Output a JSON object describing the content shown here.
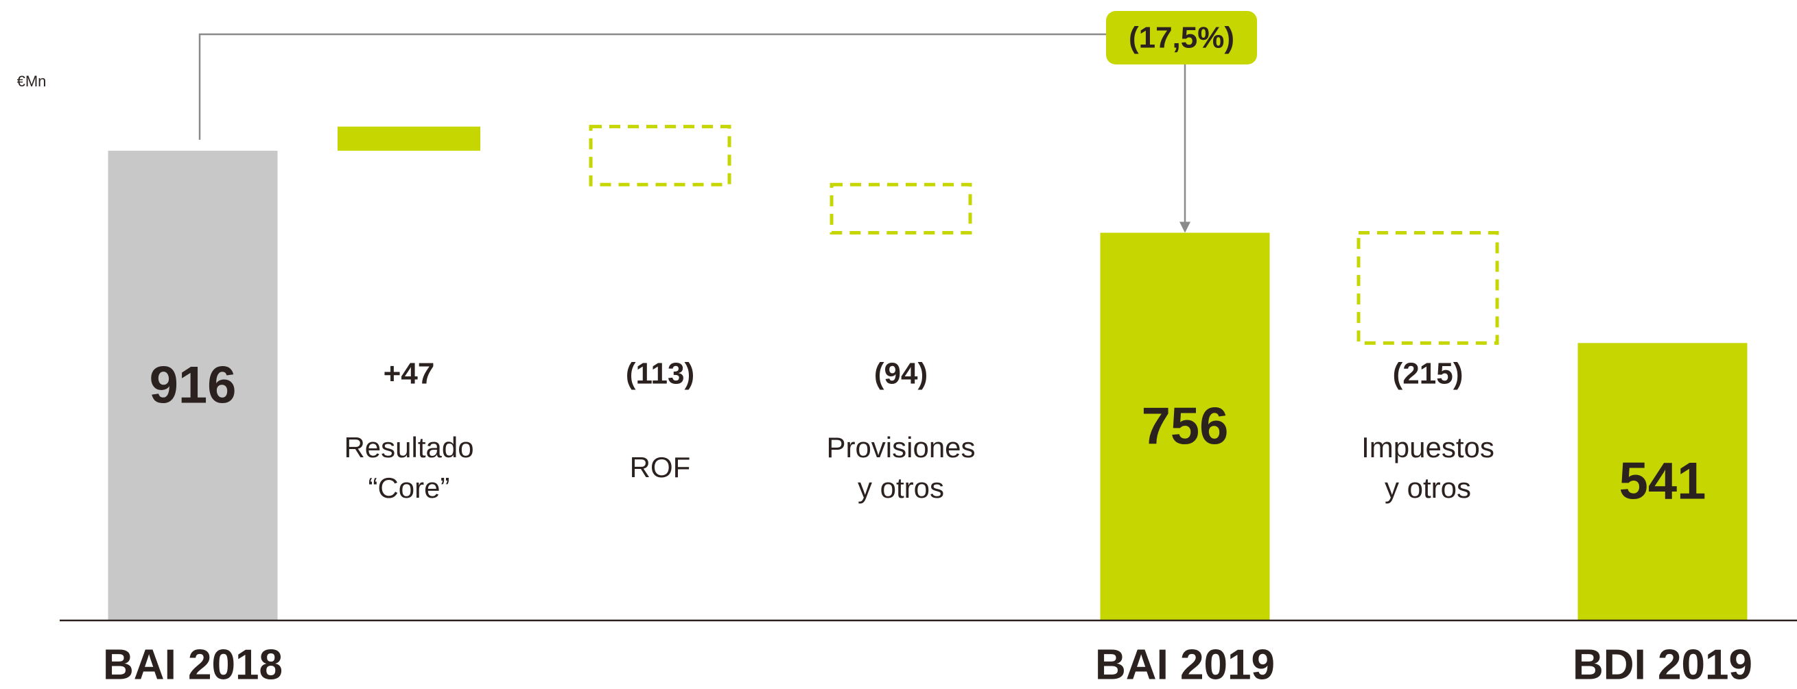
{
  "chart_data": {
    "type": "waterfall",
    "unit": "€Mn",
    "categories": [
      [
        "BAI 2018"
      ],
      [
        "Resultado",
        "“Core”"
      ],
      [
        "ROF"
      ],
      [
        "Provisiones",
        "y otros"
      ],
      [
        "BAI 2019"
      ],
      [
        "Impuestos",
        "y otros"
      ],
      [
        "BDI 2019"
      ]
    ],
    "measure": [
      "total",
      "relative",
      "relative",
      "relative",
      "total",
      "relative",
      "total"
    ],
    "values": [
      916,
      47,
      -113,
      -94,
      756,
      -215,
      541
    ],
    "value_labels": [
      "916",
      "+47",
      "(113)",
      "(94)",
      "756",
      "(215)",
      "541"
    ],
    "colors": {
      "first_total": "#c8c8c8",
      "total": "#c5d600",
      "increase": "#c5d600",
      "decrease": "#c5d600"
    },
    "annotation": "(17,5%)",
    "ylim": [
      0,
      1000
    ]
  }
}
